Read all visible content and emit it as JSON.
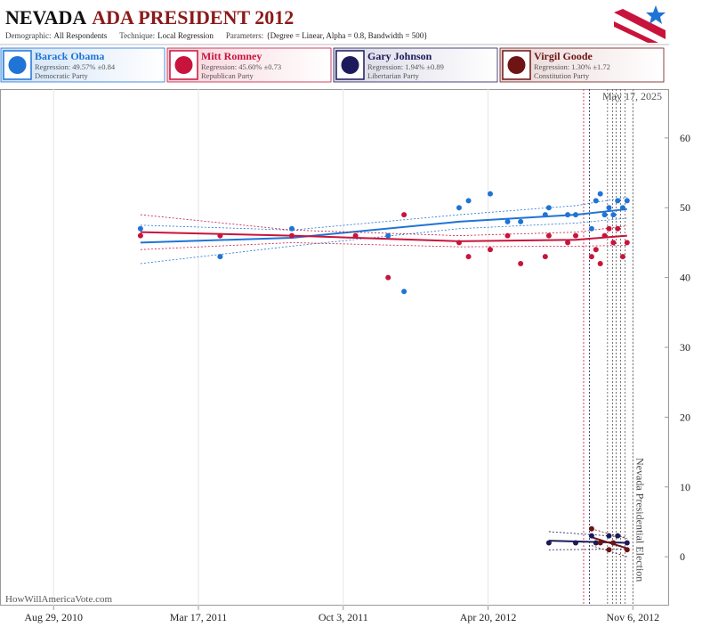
{
  "header": {
    "title_a": "NEVADA",
    "title_b": "ADA PRESIDENT 2012",
    "params": [
      {
        "label": "Demographic:",
        "value": "All Respondents"
      },
      {
        "label": "Technique:",
        "value": "Local Regression"
      },
      {
        "label": "Parameters:",
        "value": "{Degree = Linear, Alpha = 0.8, Bandwidth = 500}"
      }
    ]
  },
  "chart_data": {
    "type": "scatter",
    "x": [
      "2010-12-27",
      "2011-04-16",
      "2011-07-24",
      "2011-10-20",
      "2011-12-04",
      "2011-12-26",
      "2012-03-11",
      "2012-03-24",
      "2012-04-23",
      "2012-05-17",
      "2012-06-04",
      "2012-07-08",
      "2012-07-13",
      "2012-08-08",
      "2012-08-19",
      "2012-09-10",
      "2012-09-16",
      "2012-09-22",
      "2012-09-28",
      "2012-10-04",
      "2012-10-10",
      "2012-10-16",
      "2012-10-23",
      "2012-10-29"
    ],
    "series": [
      {
        "name": "Barack Obama",
        "regression": "Regression: 49.57% ±0.84",
        "party": "Democratic Party",
        "color": "#1f74d6",
        "values": [
          47,
          43,
          47,
          null,
          46,
          38,
          50,
          51,
          52,
          48,
          48,
          49,
          50,
          49,
          49,
          47,
          51,
          52,
          49,
          50,
          49,
          51,
          50,
          51
        ],
        "trend_x": [
          "2010-12-27",
          "2011-07-24",
          "2012-03-11",
          "2012-08-19",
          "2012-10-29"
        ],
        "trend": [
          45,
          45.7,
          48,
          49,
          49.8
        ],
        "trend_upper": [
          47.5,
          46.8,
          49,
          50.3,
          51.5
        ],
        "trend_lower": [
          42,
          44.5,
          47,
          47.8,
          48.5
        ]
      },
      {
        "name": "Mitt Romney",
        "regression": "Regression: 45.60% ±0.73",
        "party": "Republican Party",
        "color": "#c8143c",
        "values": [
          46,
          46,
          46,
          46,
          40,
          49,
          45,
          43,
          44,
          46,
          42,
          43,
          46,
          45,
          46,
          43,
          44,
          42,
          46,
          47,
          45,
          47,
          43,
          45
        ],
        "trend_x": [
          "2010-12-27",
          "2011-07-24",
          "2012-03-11",
          "2012-08-19",
          "2012-10-29"
        ],
        "trend": [
          46.5,
          46,
          45.2,
          45.4,
          46
        ],
        "trend_upper": [
          49,
          46.8,
          46,
          46.5,
          47.4
        ],
        "trend_lower": [
          44,
          45,
          44.4,
          44.5,
          44.6
        ]
      },
      {
        "name": "Gary Johnson",
        "regression": "Regression: 1.94% ±0.89",
        "party": "Libertarian Party",
        "color": "#1c1a5a",
        "values": [
          null,
          null,
          null,
          null,
          null,
          null,
          null,
          null,
          null,
          null,
          null,
          null,
          2,
          null,
          2,
          3,
          2,
          null,
          null,
          3,
          null,
          3,
          null,
          2
        ],
        "trend_x": [
          "2012-07-13",
          "2012-10-29"
        ],
        "trend": [
          2.3,
          2
        ],
        "trend_upper": [
          3.6,
          2.8
        ],
        "trend_lower": [
          1,
          1.1
        ]
      },
      {
        "name": "Virgil Goode",
        "regression": "Regression: 1.30% ±1.72",
        "party": "Constitution Party",
        "color": "#6e1414",
        "values": [
          null,
          null,
          null,
          null,
          null,
          null,
          null,
          null,
          null,
          null,
          null,
          null,
          null,
          null,
          null,
          4,
          null,
          2,
          null,
          1,
          2,
          null,
          null,
          1
        ],
        "trend_x": [
          "2012-09-10",
          "2012-10-29"
        ],
        "trend": [
          2.8,
          1.2
        ],
        "trend_upper": [
          4,
          2.6
        ],
        "trend_lower": [
          1.6,
          0
        ]
      }
    ],
    "xlim": [
      "2010-06-16",
      "2012-12-26"
    ],
    "xticks": [
      {
        "value": "2010-08-29",
        "label": "Aug 29, 2010"
      },
      {
        "value": "2011-03-17",
        "label": "Mar 17, 2011"
      },
      {
        "value": "2011-10-03",
        "label": "Oct 3, 2011"
      },
      {
        "value": "2012-04-20",
        "label": "Apr 20, 2012"
      },
      {
        "value": "2012-11-06",
        "label": "Nov 6, 2012"
      }
    ],
    "ylim": [
      -7,
      67
    ],
    "yticks": [
      0,
      10,
      20,
      30,
      40,
      50,
      60
    ],
    "event_lines": [
      "2012-08-30",
      "2012-09-07",
      "2012-10-02",
      "2012-10-09",
      "2012-10-14",
      "2012-10-20",
      "2012-10-26"
    ],
    "event": {
      "date": "2012-11-06",
      "label": "Nevada Presidential Election"
    },
    "stamp": "May 17, 2025",
    "source": "HowWillAmericaVote.com"
  }
}
